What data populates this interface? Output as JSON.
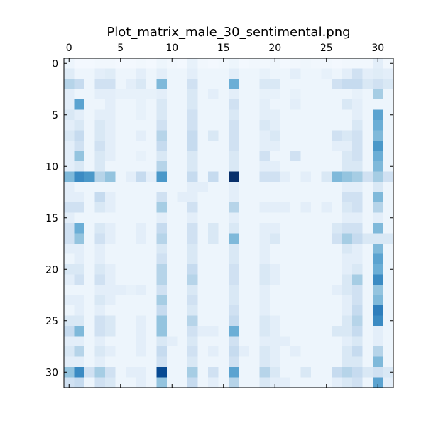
{
  "chart_data": {
    "type": "heatmap",
    "title": "Plot_matrix_male_30_sentimental.png",
    "xlabel": "",
    "ylabel": "",
    "rows": 32,
    "cols": 32,
    "x_axis_position": "top",
    "x_ticks": [
      0,
      5,
      10,
      15,
      20,
      25,
      30
    ],
    "y_ticks": [
      0,
      5,
      10,
      15,
      20,
      25,
      30
    ],
    "x_tick_labels": [
      "0",
      "5",
      "10",
      "15",
      "20",
      "25",
      "30"
    ],
    "y_tick_labels": [
      "0",
      "5",
      "10",
      "15",
      "20",
      "25",
      "30"
    ],
    "colormap": "Blues",
    "color_low": "#f7fbff",
    "color_high": "#08306b",
    "vmin": 0,
    "vmax": 1,
    "grid": false,
    "legend": "none",
    "values": [
      [
        0.05,
        0.02,
        0.02,
        0.03,
        0.03,
        0.02,
        0.02,
        0.03,
        0.02,
        0.05,
        0.03,
        0.02,
        0.08,
        0.03,
        0.02,
        0.03,
        0.05,
        0.02,
        0.03,
        0.03,
        0.04,
        0.02,
        0.03,
        0.04,
        0.03,
        0.03,
        0.02,
        0.03,
        0.03,
        0.03,
        0.1,
        0.03
      ],
      [
        0.12,
        0.05,
        0.05,
        0.1,
        0.12,
        0.05,
        0.05,
        0.1,
        0.05,
        0.1,
        0.05,
        0.05,
        0.1,
        0.05,
        0.05,
        0.05,
        0.1,
        0.05,
        0.05,
        0.08,
        0.05,
        0.05,
        0.1,
        0.05,
        0.05,
        0.08,
        0.05,
        0.1,
        0.2,
        0.1,
        0.12,
        0.1
      ],
      [
        0.3,
        0.25,
        0.05,
        0.2,
        0.2,
        0.05,
        0.1,
        0.15,
        0.05,
        0.45,
        0.05,
        0.05,
        0.2,
        0.05,
        0.05,
        0.05,
        0.5,
        0.05,
        0.05,
        0.15,
        0.15,
        0.05,
        0.05,
        0.05,
        0.05,
        0.05,
        0.2,
        0.25,
        0.25,
        0.15,
        0.2,
        0.15
      ],
      [
        0.1,
        0.05,
        0.05,
        0.1,
        0.1,
        0.08,
        0.08,
        0.08,
        0.08,
        0.1,
        0.05,
        0.05,
        0.15,
        0.05,
        0.1,
        0.05,
        0.1,
        0.05,
        0.05,
        0.08,
        0.08,
        0.05,
        0.08,
        0.05,
        0.05,
        0.05,
        0.05,
        0.05,
        0.08,
        0.05,
        0.35,
        0.05
      ],
      [
        0.1,
        0.55,
        0.05,
        0.05,
        0.1,
        0.05,
        0.05,
        0.08,
        0.05,
        0.15,
        0.05,
        0.05,
        0.15,
        0.05,
        0.05,
        0.05,
        0.2,
        0.05,
        0.05,
        0.1,
        0.05,
        0.05,
        0.1,
        0.05,
        0.05,
        0.05,
        0.05,
        0.15,
        0.1,
        0.05,
        0.05,
        0.05
      ],
      [
        0.15,
        0.1,
        0.05,
        0.1,
        0.1,
        0.05,
        0.05,
        0.08,
        0.05,
        0.15,
        0.05,
        0.05,
        0.2,
        0.05,
        0.05,
        0.05,
        0.15,
        0.05,
        0.05,
        0.1,
        0.1,
        0.05,
        0.05,
        0.05,
        0.05,
        0.05,
        0.05,
        0.05,
        0.1,
        0.05,
        0.55,
        0.05
      ],
      [
        0.1,
        0.15,
        0.05,
        0.15,
        0.1,
        0.05,
        0.05,
        0.05,
        0.05,
        0.2,
        0.05,
        0.05,
        0.2,
        0.05,
        0.05,
        0.05,
        0.2,
        0.05,
        0.05,
        0.15,
        0.1,
        0.05,
        0.05,
        0.05,
        0.05,
        0.05,
        0.05,
        0.05,
        0.15,
        0.05,
        0.5,
        0.05
      ],
      [
        0.15,
        0.25,
        0.05,
        0.15,
        0.1,
        0.05,
        0.05,
        0.1,
        0.05,
        0.3,
        0.05,
        0.05,
        0.25,
        0.05,
        0.15,
        0.05,
        0.2,
        0.05,
        0.05,
        0.1,
        0.15,
        0.05,
        0.05,
        0.05,
        0.05,
        0.05,
        0.2,
        0.15,
        0.2,
        0.05,
        0.45,
        0.05
      ],
      [
        0.1,
        0.2,
        0.05,
        0.2,
        0.1,
        0.05,
        0.05,
        0.05,
        0.05,
        0.25,
        0.05,
        0.05,
        0.25,
        0.05,
        0.05,
        0.05,
        0.2,
        0.05,
        0.05,
        0.1,
        0.1,
        0.05,
        0.05,
        0.05,
        0.05,
        0.05,
        0.1,
        0.1,
        0.2,
        0.05,
        0.6,
        0.05
      ],
      [
        0.1,
        0.4,
        0.05,
        0.15,
        0.1,
        0.05,
        0.05,
        0.08,
        0.05,
        0.15,
        0.05,
        0.05,
        0.15,
        0.05,
        0.05,
        0.05,
        0.15,
        0.05,
        0.05,
        0.2,
        0.05,
        0.05,
        0.2,
        0.05,
        0.05,
        0.05,
        0.05,
        0.15,
        0.2,
        0.05,
        0.5,
        0.05
      ],
      [
        0.1,
        0.15,
        0.05,
        0.15,
        0.05,
        0.05,
        0.05,
        0.05,
        0.05,
        0.3,
        0.05,
        0.05,
        0.15,
        0.05,
        0.05,
        0.05,
        0.15,
        0.05,
        0.05,
        0.1,
        0.1,
        0.05,
        0.05,
        0.05,
        0.05,
        0.05,
        0.05,
        0.15,
        0.15,
        0.05,
        0.45,
        0.05
      ],
      [
        0.45,
        0.65,
        0.6,
        0.3,
        0.4,
        0.05,
        0.1,
        0.25,
        0.1,
        0.6,
        0.05,
        0.05,
        0.25,
        0.05,
        0.25,
        0.05,
        1.0,
        0.05,
        0.05,
        0.2,
        0.2,
        0.1,
        0.05,
        0.1,
        0.05,
        0.15,
        0.45,
        0.4,
        0.35,
        0.2,
        0.35,
        0.2
      ],
      [
        0.1,
        0.05,
        0.05,
        0.05,
        0.05,
        0.05,
        0.05,
        0.05,
        0.05,
        0.05,
        0.05,
        0.05,
        0.1,
        0.1,
        0.05,
        0.05,
        0.1,
        0.05,
        0.05,
        0.05,
        0.05,
        0.05,
        0.05,
        0.05,
        0.05,
        0.05,
        0.05,
        0.1,
        0.1,
        0.05,
        0.15,
        0.05
      ],
      [
        0.1,
        0.1,
        0.05,
        0.25,
        0.1,
        0.05,
        0.05,
        0.05,
        0.05,
        0.2,
        0.05,
        0.1,
        0.1,
        0.05,
        0.05,
        0.05,
        0.1,
        0.05,
        0.05,
        0.05,
        0.05,
        0.05,
        0.05,
        0.05,
        0.05,
        0.05,
        0.05,
        0.2,
        0.2,
        0.05,
        0.45,
        0.05
      ],
      [
        0.2,
        0.2,
        0.05,
        0.15,
        0.1,
        0.05,
        0.05,
        0.05,
        0.05,
        0.35,
        0.05,
        0.05,
        0.2,
        0.05,
        0.05,
        0.05,
        0.3,
        0.05,
        0.05,
        0.1,
        0.1,
        0.1,
        0.05,
        0.1,
        0.05,
        0.1,
        0.05,
        0.15,
        0.2,
        0.05,
        0.3,
        0.05
      ],
      [
        0.1,
        0.05,
        0.05,
        0.05,
        0.05,
        0.05,
        0.05,
        0.05,
        0.05,
        0.1,
        0.05,
        0.05,
        0.1,
        0.05,
        0.05,
        0.05,
        0.1,
        0.05,
        0.05,
        0.05,
        0.05,
        0.05,
        0.05,
        0.05,
        0.05,
        0.05,
        0.05,
        0.1,
        0.1,
        0.05,
        0.1,
        0.05
      ],
      [
        0.2,
        0.5,
        0.05,
        0.15,
        0.1,
        0.05,
        0.05,
        0.1,
        0.05,
        0.25,
        0.05,
        0.05,
        0.2,
        0.05,
        0.15,
        0.05,
        0.15,
        0.05,
        0.05,
        0.1,
        0.1,
        0.05,
        0.05,
        0.05,
        0.05,
        0.05,
        0.15,
        0.2,
        0.2,
        0.05,
        0.45,
        0.05
      ],
      [
        0.2,
        0.4,
        0.05,
        0.2,
        0.1,
        0.05,
        0.05,
        0.1,
        0.05,
        0.3,
        0.05,
        0.05,
        0.2,
        0.05,
        0.15,
        0.05,
        0.45,
        0.05,
        0.05,
        0.1,
        0.15,
        0.05,
        0.05,
        0.05,
        0.05,
        0.05,
        0.2,
        0.35,
        0.25,
        0.15,
        0.15,
        0.15
      ],
      [
        0.1,
        0.1,
        0.05,
        0.1,
        0.05,
        0.05,
        0.05,
        0.05,
        0.05,
        0.15,
        0.05,
        0.05,
        0.15,
        0.05,
        0.05,
        0.05,
        0.15,
        0.05,
        0.05,
        0.1,
        0.05,
        0.05,
        0.05,
        0.05,
        0.05,
        0.05,
        0.05,
        0.15,
        0.1,
        0.05,
        0.45,
        0.05
      ],
      [
        0.05,
        0.1,
        0.05,
        0.1,
        0.05,
        0.05,
        0.05,
        0.05,
        0.05,
        0.2,
        0.05,
        0.05,
        0.15,
        0.05,
        0.05,
        0.05,
        0.15,
        0.05,
        0.05,
        0.1,
        0.05,
        0.05,
        0.05,
        0.05,
        0.05,
        0.05,
        0.05,
        0.1,
        0.1,
        0.05,
        0.55,
        0.05
      ],
      [
        0.15,
        0.15,
        0.05,
        0.15,
        0.1,
        0.05,
        0.05,
        0.05,
        0.05,
        0.3,
        0.05,
        0.05,
        0.25,
        0.05,
        0.05,
        0.05,
        0.2,
        0.05,
        0.05,
        0.15,
        0.1,
        0.05,
        0.05,
        0.05,
        0.05,
        0.05,
        0.05,
        0.1,
        0.15,
        0.05,
        0.5,
        0.05
      ],
      [
        0.1,
        0.2,
        0.05,
        0.2,
        0.1,
        0.05,
        0.05,
        0.05,
        0.05,
        0.3,
        0.05,
        0.05,
        0.3,
        0.05,
        0.05,
        0.05,
        0.2,
        0.05,
        0.05,
        0.15,
        0.1,
        0.05,
        0.05,
        0.05,
        0.05,
        0.05,
        0.05,
        0.15,
        0.35,
        0.05,
        0.65,
        0.05
      ],
      [
        0.05,
        0.05,
        0.05,
        0.1,
        0.1,
        0.1,
        0.08,
        0.1,
        0.05,
        0.2,
        0.05,
        0.05,
        0.15,
        0.05,
        0.05,
        0.05,
        0.15,
        0.05,
        0.05,
        0.1,
        0.05,
        0.05,
        0.05,
        0.05,
        0.05,
        0.05,
        0.1,
        0.15,
        0.2,
        0.05,
        0.4,
        0.05
      ],
      [
        0.1,
        0.1,
        0.05,
        0.15,
        0.1,
        0.05,
        0.05,
        0.05,
        0.05,
        0.35,
        0.05,
        0.05,
        0.2,
        0.05,
        0.05,
        0.05,
        0.15,
        0.05,
        0.05,
        0.1,
        0.05,
        0.05,
        0.05,
        0.05,
        0.05,
        0.05,
        0.05,
        0.1,
        0.2,
        0.05,
        0.45,
        0.05
      ],
      [
        0.05,
        0.1,
        0.05,
        0.1,
        0.05,
        0.05,
        0.05,
        0.05,
        0.05,
        0.25,
        0.05,
        0.05,
        0.15,
        0.05,
        0.05,
        0.05,
        0.2,
        0.05,
        0.05,
        0.1,
        0.05,
        0.05,
        0.05,
        0.05,
        0.05,
        0.05,
        0.05,
        0.1,
        0.25,
        0.05,
        0.7,
        0.05
      ],
      [
        0.15,
        0.15,
        0.05,
        0.2,
        0.15,
        0.05,
        0.05,
        0.1,
        0.05,
        0.4,
        0.05,
        0.05,
        0.3,
        0.05,
        0.05,
        0.05,
        0.25,
        0.05,
        0.05,
        0.15,
        0.1,
        0.05,
        0.05,
        0.05,
        0.05,
        0.05,
        0.05,
        0.15,
        0.3,
        0.05,
        0.65,
        0.05
      ],
      [
        0.25,
        0.45,
        0.05,
        0.2,
        0.15,
        0.05,
        0.05,
        0.1,
        0.05,
        0.4,
        0.05,
        0.05,
        0.2,
        0.1,
        0.1,
        0.05,
        0.5,
        0.05,
        0.05,
        0.15,
        0.1,
        0.05,
        0.05,
        0.05,
        0.05,
        0.05,
        0.15,
        0.15,
        0.25,
        0.05,
        0.1,
        0.05
      ],
      [
        0.1,
        0.1,
        0.05,
        0.1,
        0.05,
        0.05,
        0.05,
        0.1,
        0.05,
        0.15,
        0.1,
        0.05,
        0.15,
        0.05,
        0.05,
        0.05,
        0.2,
        0.05,
        0.05,
        0.1,
        0.1,
        0.1,
        0.05,
        0.05,
        0.05,
        0.05,
        0.05,
        0.1,
        0.15,
        0.05,
        0.1,
        0.05
      ],
      [
        0.15,
        0.3,
        0.05,
        0.15,
        0.1,
        0.05,
        0.05,
        0.1,
        0.05,
        0.25,
        0.05,
        0.05,
        0.2,
        0.05,
        0.1,
        0.05,
        0.25,
        0.1,
        0.05,
        0.15,
        0.1,
        0.05,
        0.1,
        0.05,
        0.05,
        0.05,
        0.05,
        0.15,
        0.25,
        0.05,
        0.3,
        0.05
      ],
      [
        0.1,
        0.1,
        0.05,
        0.1,
        0.05,
        0.05,
        0.05,
        0.05,
        0.05,
        0.2,
        0.05,
        0.05,
        0.15,
        0.05,
        0.05,
        0.05,
        0.2,
        0.05,
        0.05,
        0.15,
        0.1,
        0.05,
        0.05,
        0.05,
        0.05,
        0.05,
        0.05,
        0.15,
        0.15,
        0.05,
        0.45,
        0.05
      ],
      [
        0.4,
        0.65,
        0.2,
        0.35,
        0.2,
        0.05,
        0.1,
        0.1,
        0.05,
        0.9,
        0.05,
        0.05,
        0.35,
        0.05,
        0.2,
        0.05,
        0.55,
        0.05,
        0.05,
        0.3,
        0.15,
        0.05,
        0.05,
        0.15,
        0.05,
        0.05,
        0.25,
        0.3,
        0.25,
        0.15,
        0.2,
        0.15
      ],
      [
        0.2,
        0.25,
        0.05,
        0.2,
        0.15,
        0.05,
        0.05,
        0.1,
        0.05,
        0.4,
        0.05,
        0.05,
        0.25,
        0.05,
        0.1,
        0.05,
        0.3,
        0.05,
        0.05,
        0.15,
        0.1,
        0.1,
        0.05,
        0.05,
        0.05,
        0.05,
        0.1,
        0.15,
        0.2,
        0.05,
        0.55,
        0.1
      ]
    ]
  }
}
